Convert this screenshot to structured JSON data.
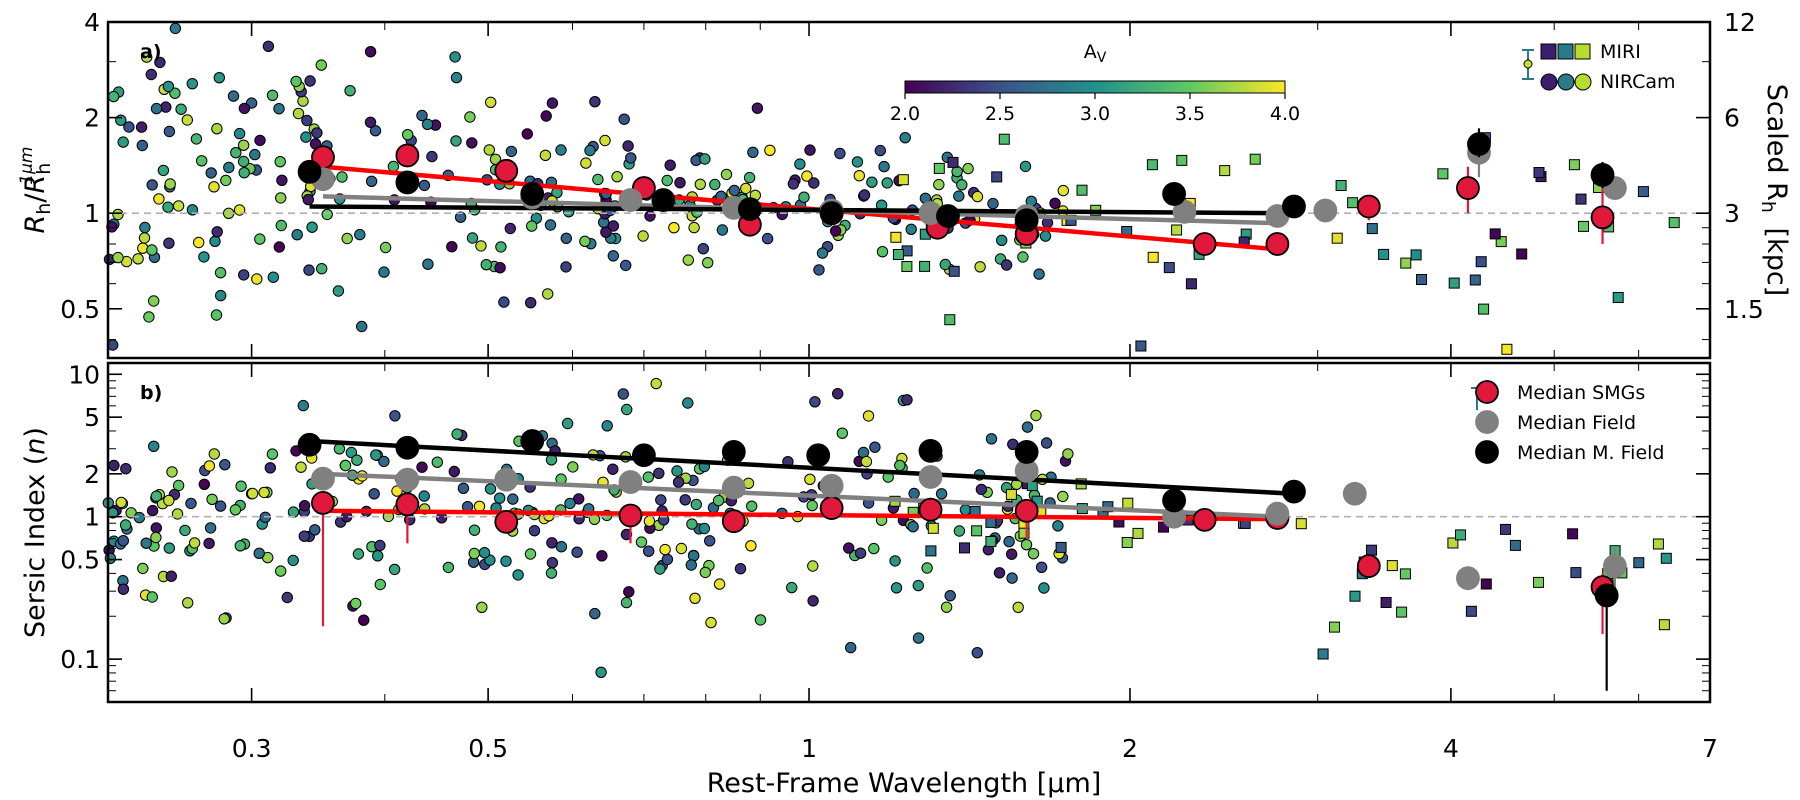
{
  "figure": {
    "xlabel": "Rest-Frame Wavelength [μm]",
    "x_ticks": [
      {
        "v": 0.3,
        "label": "0.3"
      },
      {
        "v": 0.5,
        "label": "0.5"
      },
      {
        "v": 1,
        "label": "1"
      },
      {
        "v": 2,
        "label": "2"
      },
      {
        "v": 4,
        "label": "4"
      },
      {
        "v": 7,
        "label": "7"
      }
    ],
    "xlim": [
      0.22,
      7
    ],
    "xscale": "log"
  },
  "chart_data": [
    {
      "type": "scatter",
      "panel_label": "a)",
      "ylabel": "Rh/Rh^1μm",
      "ylabel_parts": {
        "main": "R",
        "sub": "h",
        "slash": "/",
        "main2": "R",
        "sub2": "h",
        "sup2": "1μm"
      },
      "yscale": "log",
      "ylim": [
        0.35,
        4
      ],
      "y_ticks": [
        {
          "v": 0.5,
          "label": "0.5"
        },
        {
          "v": 1,
          "label": "1"
        },
        {
          "v": 2,
          "label": "2"
        },
        {
          "v": 4,
          "label": "4"
        }
      ],
      "right_axis": {
        "label_main": "Scaled R",
        "label_sub": "h",
        "label_unit": "[kpc]",
        "ticks": [
          {
            "v": 0.5,
            "label": "1.5"
          },
          {
            "v": 1,
            "label": "3"
          },
          {
            "v": 2,
            "label": "6"
          },
          {
            "v": 4,
            "label": "12"
          }
        ]
      },
      "reference_line": 1,
      "colorbar": {
        "label": "A",
        "label_sub": "V",
        "min": 2.0,
        "max": 4.0,
        "ticks": [
          "2.0",
          "2.5",
          "3.0",
          "3.5",
          "4.0"
        ],
        "colormap": [
          "#440154",
          "#3b528b",
          "#21918c",
          "#5ec962",
          "#fde725"
        ]
      },
      "legend": {
        "placement": "top-right",
        "entries": [
          {
            "label": "MIRI",
            "marker": "square"
          },
          {
            "label": "NIRCam",
            "marker": "circle"
          }
        ]
      },
      "median_smgs": {
        "color": "#e0183c",
        "points": [
          [
            0.35,
            1.5
          ],
          [
            0.42,
            1.52
          ],
          [
            0.52,
            1.36
          ],
          [
            0.7,
            1.2
          ],
          [
            0.88,
            0.92
          ],
          [
            1.05,
            1.0
          ],
          [
            1.32,
            0.9
          ],
          [
            1.6,
            0.86
          ],
          [
            2.35,
            0.8
          ],
          [
            2.75,
            0.8
          ],
          [
            3.35,
            1.05
          ],
          [
            4.15,
            1.2
          ],
          [
            5.55,
            0.97
          ]
        ],
        "err": [
          [
            0.35,
            1.3,
            1.6
          ],
          [
            4.15,
            1.0,
            1.4
          ],
          [
            3.35,
            0.95,
            1.12
          ],
          [
            5.55,
            0.8,
            1.2
          ]
        ]
      },
      "median_field": {
        "color": "#808080",
        "points": [
          [
            0.35,
            1.28
          ],
          [
            0.55,
            1.12
          ],
          [
            0.68,
            1.1
          ],
          [
            0.85,
            1.04
          ],
          [
            1.05,
            1.02
          ],
          [
            1.3,
            1.0
          ],
          [
            1.6,
            0.98
          ],
          [
            2.25,
            1.01
          ],
          [
            2.75,
            0.98
          ],
          [
            3.05,
            1.02
          ],
          [
            4.25,
            1.55
          ],
          [
            5.7,
            1.2
          ]
        ],
        "err": [
          [
            4.25,
            1.3,
            1.8
          ]
        ]
      },
      "median_mfield": {
        "color": "#000000",
        "points": [
          [
            0.34,
            1.35
          ],
          [
            0.42,
            1.25
          ],
          [
            0.55,
            1.15
          ],
          [
            0.73,
            1.1
          ],
          [
            0.88,
            1.03
          ],
          [
            1.05,
            1.0
          ],
          [
            1.35,
            0.98
          ],
          [
            1.6,
            0.95
          ],
          [
            2.2,
            1.15
          ],
          [
            2.85,
            1.05
          ],
          [
            4.25,
            1.65
          ],
          [
            5.55,
            1.32
          ]
        ],
        "err": [
          [
            4.25,
            1.5,
            1.85
          ],
          [
            5.55,
            1.2,
            1.45
          ]
        ]
      },
      "fits": [
        {
          "name": "SMGs",
          "color": "#ff0000",
          "x": [
            0.35,
            2.75
          ],
          "y": [
            1.4,
            0.77
          ]
        },
        {
          "name": "Field",
          "color": "#808080",
          "x": [
            0.35,
            2.75
          ],
          "y": [
            1.13,
            0.93
          ]
        },
        {
          "name": "M. Field",
          "color": "#000000",
          "x": [
            0.34,
            2.75
          ],
          "y": [
            1.05,
            1.0
          ]
        }
      ]
    },
    {
      "type": "scatter",
      "panel_label": "b)",
      "ylabel": "Sersic Index (n)",
      "ylabel_parts": {
        "main": "Sersic Index (",
        "italic": "n",
        "end": ")"
      },
      "yscale": "log",
      "ylim": [
        0.05,
        12
      ],
      "y_ticks": [
        {
          "v": 0.1,
          "label": "0.1"
        },
        {
          "v": 0.5,
          "label": "0.5"
        },
        {
          "v": 1,
          "label": "1"
        },
        {
          "v": 2,
          "label": "2"
        },
        {
          "v": 5,
          "label": "5"
        },
        {
          "v": 10,
          "label": "10"
        }
      ],
      "reference_line": 1,
      "legend": {
        "placement": "top-right",
        "entries": [
          {
            "label": "Median SMGs",
            "color": "#e0183c"
          },
          {
            "label": "Median Field",
            "color": "#808080"
          },
          {
            "label": "Median M. Field",
            "color": "#000000"
          }
        ]
      },
      "median_smgs": {
        "color": "#e0183c",
        "points": [
          [
            0.35,
            1.25
          ],
          [
            0.42,
            1.22
          ],
          [
            0.52,
            0.92
          ],
          [
            0.68,
            1.02
          ],
          [
            0.85,
            0.93
          ],
          [
            1.05,
            1.15
          ],
          [
            1.3,
            1.12
          ],
          [
            1.6,
            1.1
          ],
          [
            2.35,
            0.95
          ],
          [
            2.75,
            0.98
          ],
          [
            3.35,
            0.45
          ],
          [
            5.55,
            0.32
          ]
        ],
        "err": [
          [
            0.35,
            0.17,
            1.4
          ],
          [
            0.42,
            0.65,
            1.3
          ],
          [
            0.68,
            0.65,
            1.1
          ],
          [
            1.6,
            0.7,
            1.3
          ],
          [
            5.55,
            0.15,
            0.4
          ]
        ]
      },
      "median_field": {
        "color": "#808080",
        "points": [
          [
            0.35,
            1.85
          ],
          [
            0.42,
            1.82
          ],
          [
            0.52,
            1.82
          ],
          [
            0.68,
            1.75
          ],
          [
            0.85,
            1.6
          ],
          [
            1.05,
            1.65
          ],
          [
            1.3,
            1.9
          ],
          [
            1.6,
            2.1
          ],
          [
            2.2,
            1.0
          ],
          [
            2.75,
            1.05
          ],
          [
            3.25,
            1.45
          ],
          [
            4.15,
            0.37
          ],
          [
            5.7,
            0.45
          ]
        ],
        "err": [
          [
            5.7,
            0.3,
            0.6
          ]
        ]
      },
      "median_mfield": {
        "color": "#000000",
        "points": [
          [
            0.34,
            3.2
          ],
          [
            0.42,
            3.05
          ],
          [
            0.55,
            3.4
          ],
          [
            0.7,
            2.7
          ],
          [
            0.85,
            2.85
          ],
          [
            1.02,
            2.7
          ],
          [
            1.3,
            2.9
          ],
          [
            1.6,
            2.85
          ],
          [
            2.2,
            1.3
          ],
          [
            2.85,
            1.5
          ],
          [
            5.6,
            0.28
          ]
        ],
        "err": [
          [
            5.6,
            0.06,
            0.33
          ]
        ]
      },
      "fits": [
        {
          "name": "SMGs",
          "color": "#ff0000",
          "x": [
            0.35,
            2.75
          ],
          "y": [
            1.1,
            0.96
          ]
        },
        {
          "name": "Field",
          "color": "#808080",
          "x": [
            0.35,
            2.75
          ],
          "y": [
            2.0,
            1.0
          ]
        },
        {
          "name": "M. Field",
          "color": "#000000",
          "x": [
            0.34,
            2.85
          ],
          "y": [
            3.4,
            1.45
          ]
        }
      ]
    }
  ]
}
